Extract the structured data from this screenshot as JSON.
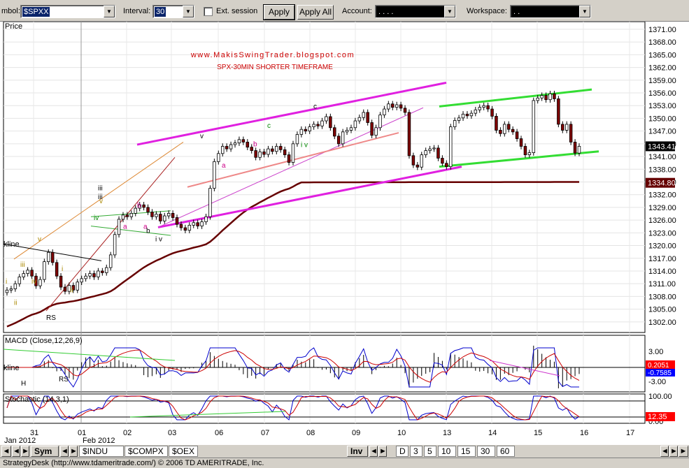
{
  "toolbar": {
    "symbol_label": "mbol:",
    "symbol_value": "$SPXX",
    "interval_label": "Interval:",
    "interval_value": "30",
    "ext_session_label": "Ext. session",
    "apply_label": "Apply",
    "apply_all_label": "Apply All",
    "account_label": "Account:",
    "account_value": ".   .   .   .",
    "workspace_label": "Workspace:",
    "workspace_value": ".   ."
  },
  "chart_data": [
    {
      "type": "candlestick",
      "panel": "price",
      "ylabel": "Price",
      "annotation_lines": [
        "www.MakisSwingTrader.blogspot.com",
        "SPX-30MIN SHORTER TIMEFRAME"
      ],
      "y_ticks": [
        1302.0,
        1305.0,
        1308.0,
        1311.0,
        1314.0,
        1317.0,
        1320.0,
        1323.0,
        1326.0,
        1329.0,
        1332.0,
        1335.0,
        1338.0,
        1341.0,
        1344.0,
        1347.0,
        1350.0,
        1353.0,
        1356.0,
        1359.0,
        1362.0,
        1365.0,
        1368.0,
        1371.0
      ],
      "y_tick_labels": [
        "1302.00",
        "1305.00",
        "1308.00",
        "1311.00",
        "1314.00",
        "1317.00",
        "1320.00",
        "1323.00",
        "1326.00",
        "1329.00",
        "1332.00",
        "1335.00",
        "1338.00",
        "1341.00",
        "1344.00",
        "1347.00",
        "1350.00",
        "1353.00",
        "1356.00",
        "1359.00",
        "1362.00",
        "1365.00",
        "1368.00",
        "1371.00"
      ],
      "ylim": [
        1299.5,
        1372.8
      ],
      "last_price_label": "1343.41",
      "last_price": 1343.41,
      "ma_label": "1334.80",
      "ma_value": 1334.8,
      "x_tick_labels": [
        "31",
        "01",
        "02",
        "03",
        "06",
        "07",
        "08",
        "09",
        "10",
        "13",
        "14",
        "15",
        "16",
        "17"
      ],
      "month_labels": [
        "Jan 2012",
        "Feb 2012"
      ],
      "wave_labels": [
        "i",
        "ii",
        "iii",
        "iv",
        "v",
        "i",
        "ii",
        "RS",
        "iii",
        "iv",
        "v",
        "a",
        "b",
        "a",
        "b",
        "c",
        "v",
        "a",
        "b",
        "c",
        "i v",
        "iii",
        "i v"
      ],
      "trendline_labels": [
        "kline"
      ],
      "closes": [
        1309.5,
        1309.8,
        1311,
        1312.6,
        1313.4,
        1314.2,
        1312.8,
        1310.5,
        1312,
        1316.2,
        1318.4,
        1316,
        1312.8,
        1310.2,
        1309.2,
        1310.6,
        1309.5,
        1311.4,
        1312.2,
        1312.8,
        1313.4,
        1312.6,
        1314,
        1313.6,
        1314.8,
        1317.8,
        1322.6,
        1326.2,
        1327.2,
        1326.8,
        1327.6,
        1328.8,
        1329.6,
        1329,
        1327.9,
        1326.8,
        1327.4,
        1325.8,
        1327,
        1327.6,
        1326.6,
        1325,
        1324.2,
        1323.6,
        1324.8,
        1325.4,
        1324.6,
        1325.6,
        1326.8,
        1333.5,
        1339.8,
        1341.7,
        1343.4,
        1342.8,
        1343.8,
        1344.2,
        1345,
        1344.4,
        1343.2,
        1342.4,
        1340.8,
        1342.1,
        1341.5,
        1342.8,
        1342.2,
        1343.4,
        1342.6,
        1341.4,
        1339.6,
        1344,
        1346.2,
        1347.4,
        1347,
        1348,
        1348.6,
        1348.2,
        1349.4,
        1350.4,
        1347.8,
        1345.8,
        1344,
        1346.8,
        1347.2,
        1347.8,
        1349.4,
        1350.2,
        1351.4,
        1349,
        1346,
        1347.8,
        1350.8,
        1352.2,
        1353.4,
        1352.6,
        1353.2,
        1352.4,
        1351.4,
        1341.2,
        1339,
        1338.5,
        1341.4,
        1342.4,
        1342.8,
        1343,
        1340.6,
        1339.4,
        1338.6,
        1348,
        1349.5,
        1350.1,
        1351,
        1350.6,
        1351.2,
        1352,
        1352.6,
        1353,
        1352.2,
        1350.5,
        1347.2,
        1346.4,
        1348.6,
        1347.4,
        1346.8,
        1345.2,
        1343.4,
        1341.4,
        1341.9,
        1354.2,
        1354.8,
        1355.4,
        1354.4,
        1355.8,
        1354.6,
        1348.6,
        1347.2,
        1348.6,
        1344.4,
        1341.8,
        1343.41
      ],
      "macd_panel": {
        "title": "MACD (Close,12,26,9)",
        "y_tick_labels": [
          "3.00",
          "-3.00"
        ],
        "value_labels": [
          "0.2051",
          "-0.7585"
        ],
        "trendline_labels": [
          "kline"
        ],
        "wave_labels": [
          "H",
          "RS"
        ]
      },
      "stoch_panel": {
        "title": "Stochastic (14,3,1)",
        "y_tick_labels": [
          "100.00",
          "0.00"
        ],
        "value_label": "12.35"
      }
    }
  ],
  "bottombar": {
    "sym_label": "Sym",
    "tabs": [
      "$INDU",
      "$COMPX",
      "$OEX"
    ],
    "inv_label": "Inv",
    "periods": [
      "D",
      "3",
      "5",
      "10",
      "15",
      "30",
      "60"
    ]
  },
  "status": {
    "text": "StrategyDesk (http://www.tdameritrade.com/) © 2006 TD AMERITRADE, Inc."
  },
  "colors": {
    "up_candle": "#ffffff",
    "down_candle": "#800000",
    "ma_line": "#660000",
    "channel_magenta": "#e020e0",
    "channel_green": "#33dd33",
    "macd_line": "#0000cc",
    "signal_line": "#cc0000",
    "last_price_box": "#000000",
    "ma_box": "#660000",
    "macd_value_box": "#ff0000",
    "signal_value_box": "#0000ff"
  }
}
